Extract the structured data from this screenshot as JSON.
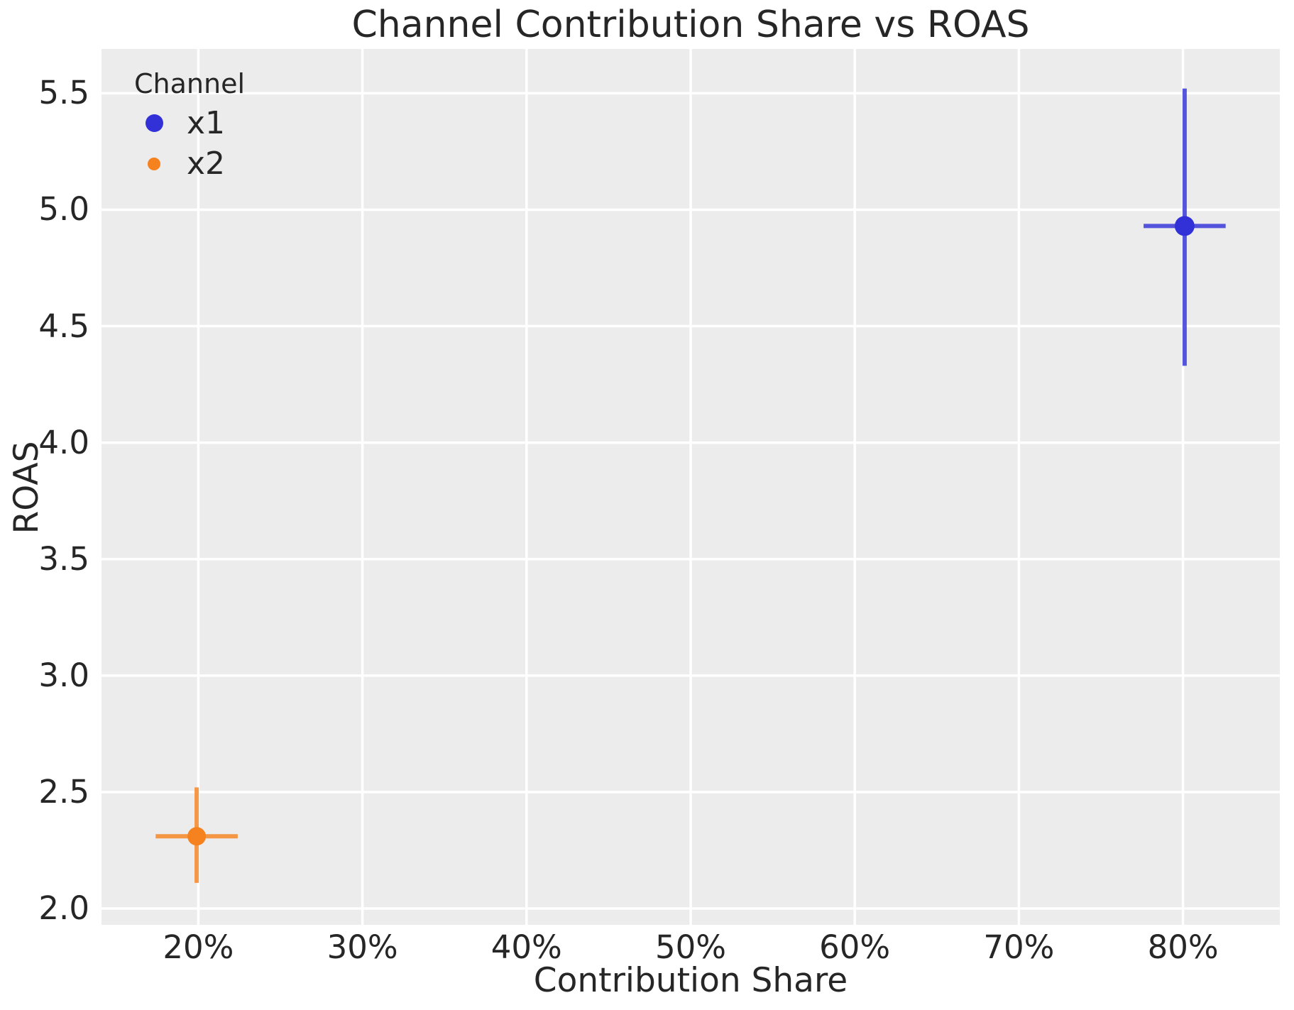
{
  "title": "Channel Contribution Share vs ROAS",
  "axes": {
    "xlabel": "Contribution Share",
    "ylabel": "ROAS"
  },
  "legend": {
    "title": "Channel",
    "items": [
      {
        "label": "x1",
        "color": "#3231d8",
        "marker_radius": 12.5
      },
      {
        "label": "x2",
        "color": "#f5821e",
        "marker_radius": 9
      }
    ]
  },
  "style": {
    "plot_background": "#ececec",
    "gridline_color": "#ffffff",
    "gridline_width": 3.5,
    "text_color": "#262626",
    "errorbar_width": 6,
    "errorbar_opacity": 0.82
  },
  "chart_data": {
    "type": "scatter",
    "title": "Channel Contribution Share vs ROAS",
    "xlabel": "Contribution Share",
    "ylabel": "ROAS",
    "grid": true,
    "legend_position": "upper left",
    "x_unit": "percent",
    "xlim": [
      14.1,
      85.9
    ],
    "ylim": [
      1.93,
      5.69
    ],
    "x_ticks": [
      20,
      30,
      40,
      50,
      60,
      70,
      80
    ],
    "x_tick_labels": [
      "20%",
      "30%",
      "40%",
      "50%",
      "60%",
      "70%",
      "80%"
    ],
    "y_ticks": [
      2.0,
      2.5,
      3.0,
      3.5,
      4.0,
      4.5,
      5.0,
      5.5
    ],
    "y_tick_labels": [
      "2.0",
      "2.5",
      "3.0",
      "3.5",
      "4.0",
      "4.5",
      "5.0",
      "5.5"
    ],
    "series": [
      {
        "name": "x1",
        "color": "#3231d8",
        "x": 80.1,
        "y": 4.93,
        "xerr_low": 77.6,
        "xerr_high": 82.6,
        "yerr_low": 4.33,
        "yerr_high": 5.52,
        "marker_radius": 14
      },
      {
        "name": "x2",
        "color": "#f5821e",
        "x": 19.9,
        "y": 2.31,
        "xerr_low": 17.4,
        "xerr_high": 22.4,
        "yerr_low": 2.11,
        "yerr_high": 2.52,
        "marker_radius": 13
      }
    ]
  }
}
